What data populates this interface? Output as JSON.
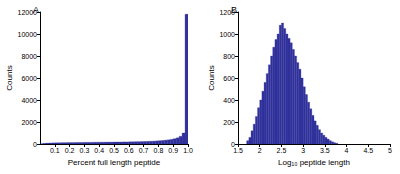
{
  "chart_data": [
    {
      "type": "histogram",
      "title": "A",
      "x_label": "Percent full length peptide",
      "y_label": "Counts",
      "bins": [
        0,
        0.02,
        0.04,
        0.06,
        0.08,
        0.1,
        0.12,
        0.14,
        0.16,
        0.18,
        0.2,
        0.22,
        0.24,
        0.26,
        0.28,
        0.3,
        0.32,
        0.34,
        0.36,
        0.38,
        0.4,
        0.42,
        0.44,
        0.46,
        0.48,
        0.5,
        0.52,
        0.54,
        0.56,
        0.58,
        0.6,
        0.62,
        0.64,
        0.66,
        0.68,
        0.7,
        0.72,
        0.74,
        0.76,
        0.78,
        0.8,
        0.82,
        0.84,
        0.86,
        0.88,
        0.9,
        0.92,
        0.94,
        0.96,
        0.98,
        1
      ],
      "values": [
        20,
        60,
        80,
        90,
        100,
        110,
        110,
        120,
        120,
        130,
        130,
        130,
        140,
        140,
        140,
        150,
        150,
        150,
        160,
        160,
        160,
        160,
        170,
        170,
        170,
        180,
        180,
        180,
        190,
        190,
        200,
        200,
        210,
        210,
        220,
        230,
        240,
        250,
        260,
        280,
        300,
        320,
        350,
        380,
        420,
        480,
        560,
        700,
        1000,
        11800
      ],
      "color": "#31319b",
      "xlim": [
        0,
        1
      ],
      "xticks": [
        0.1,
        0.2,
        0.3,
        0.4,
        0.5,
        0.6,
        0.7,
        0.8,
        0.9,
        {
          "value": 1,
          "label": "1.0"
        }
      ],
      "ylim": [
        0,
        12000
      ],
      "yticks": [
        0,
        2000,
        4000,
        6000,
        8000,
        10000,
        12000
      ],
      "grid": false
    },
    {
      "type": "histogram",
      "title": "B",
      "x_label": "Log₁₀ peptide length",
      "y_label": "Counts",
      "bins": [
        1.7,
        1.75,
        1.8,
        1.85,
        1.9,
        1.95,
        2,
        2.05,
        2.1,
        2.15,
        2.2,
        2.25,
        2.3,
        2.35,
        2.4,
        2.45,
        2.5,
        2.55,
        2.6,
        2.65,
        2.7,
        2.75,
        2.8,
        2.85,
        2.9,
        2.95,
        3,
        3.05,
        3.1,
        3.15,
        3.2,
        3.25,
        3.3,
        3.35,
        3.4,
        3.45,
        3.5,
        3.55,
        3.6,
        3.65,
        3.7,
        3.75,
        3.8
      ],
      "values": [
        30,
        60,
        120,
        180,
        250,
        330,
        400,
        480,
        560,
        640,
        720,
        800,
        880,
        950,
        1000,
        1080,
        1100,
        1050,
        1000,
        960,
        920,
        860,
        800,
        740,
        680,
        600,
        520,
        450,
        380,
        320,
        260,
        210,
        170,
        130,
        100,
        80,
        60,
        45,
        30,
        20,
        12,
        6
      ],
      "color": "#31319b",
      "xlim": [
        1.5,
        5
      ],
      "xticks": [
        1.5,
        2,
        2.5,
        3,
        3.5,
        4,
        4.5,
        5
      ],
      "ylim": [
        0,
        1200
      ],
      "yticks": [
        0,
        200,
        400,
        600,
        800,
        1000,
        1200
      ],
      "grid": false
    }
  ]
}
